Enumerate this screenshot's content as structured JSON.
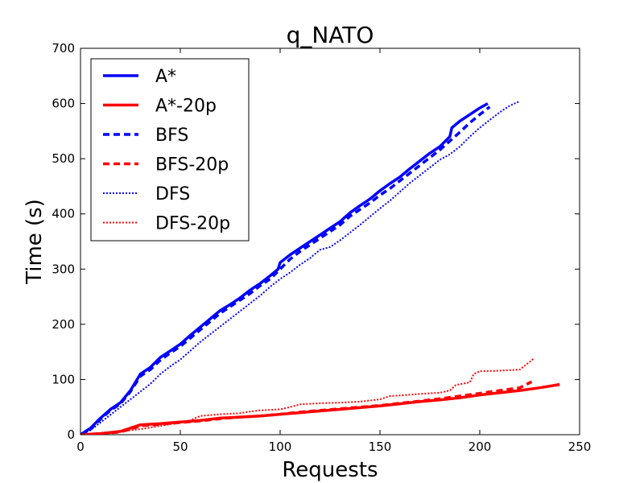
{
  "chart_data": {
    "type": "line",
    "title": "q_NATO",
    "xlabel": "Requests",
    "ylabel": "Time (s)",
    "xlim": [
      0,
      250
    ],
    "ylim": [
      0,
      700
    ],
    "xticks": [
      "0",
      "50",
      "100",
      "150",
      "200",
      "250"
    ],
    "yticks": [
      "0",
      "100",
      "200",
      "300",
      "400",
      "500",
      "600",
      "700"
    ],
    "grid": false,
    "legend_position": "top-left",
    "series": [
      {
        "name": "A*",
        "color": "#0000ff",
        "style": "solid",
        "points": [
          [
            0,
            0
          ],
          [
            5,
            12
          ],
          [
            10,
            30
          ],
          [
            15,
            46
          ],
          [
            20,
            58
          ],
          [
            25,
            80
          ],
          [
            30,
            110
          ],
          [
            35,
            122
          ],
          [
            40,
            140
          ],
          [
            45,
            152
          ],
          [
            50,
            164
          ],
          [
            55,
            180
          ],
          [
            60,
            195
          ],
          [
            65,
            210
          ],
          [
            70,
            225
          ],
          [
            75,
            236
          ],
          [
            80,
            248
          ],
          [
            85,
            262
          ],
          [
            90,
            274
          ],
          [
            95,
            288
          ],
          [
            99,
            300
          ],
          [
            100,
            312
          ],
          [
            105,
            326
          ],
          [
            110,
            338
          ],
          [
            115,
            350
          ],
          [
            120,
            362
          ],
          [
            125,
            374
          ],
          [
            130,
            386
          ],
          [
            135,
            402
          ],
          [
            140,
            415
          ],
          [
            145,
            427
          ],
          [
            150,
            442
          ],
          [
            155,
            455
          ],
          [
            160,
            467
          ],
          [
            165,
            482
          ],
          [
            170,
            496
          ],
          [
            175,
            510
          ],
          [
            180,
            522
          ],
          [
            185,
            540
          ],
          [
            186,
            556
          ],
          [
            190,
            568
          ],
          [
            195,
            580
          ],
          [
            200,
            592
          ],
          [
            204,
            600
          ]
        ]
      },
      {
        "name": "A*-20p",
        "color": "#ff0000",
        "style": "solid",
        "points": [
          [
            0,
            0
          ],
          [
            10,
            2
          ],
          [
            20,
            6
          ],
          [
            25,
            12
          ],
          [
            30,
            18
          ],
          [
            40,
            20
          ],
          [
            50,
            23
          ],
          [
            60,
            26
          ],
          [
            70,
            30
          ],
          [
            80,
            32
          ],
          [
            90,
            34
          ],
          [
            100,
            37
          ],
          [
            110,
            40
          ],
          [
            120,
            43
          ],
          [
            130,
            46
          ],
          [
            140,
            49
          ],
          [
            150,
            52
          ],
          [
            160,
            56
          ],
          [
            170,
            60
          ],
          [
            180,
            63
          ],
          [
            190,
            67
          ],
          [
            200,
            72
          ],
          [
            210,
            76
          ],
          [
            220,
            80
          ],
          [
            230,
            85
          ],
          [
            240,
            91
          ]
        ]
      },
      {
        "name": "BFS",
        "color": "#0000ff",
        "style": "dashed",
        "points": [
          [
            0,
            0
          ],
          [
            5,
            10
          ],
          [
            10,
            28
          ],
          [
            15,
            44
          ],
          [
            20,
            56
          ],
          [
            25,
            78
          ],
          [
            30,
            106
          ],
          [
            35,
            118
          ],
          [
            40,
            135
          ],
          [
            45,
            148
          ],
          [
            50,
            160
          ],
          [
            55,
            175
          ],
          [
            60,
            190
          ],
          [
            65,
            205
          ],
          [
            70,
            220
          ],
          [
            75,
            232
          ],
          [
            80,
            244
          ],
          [
            85,
            256
          ],
          [
            90,
            270
          ],
          [
            95,
            282
          ],
          [
            100,
            300
          ],
          [
            105,
            318
          ],
          [
            110,
            332
          ],
          [
            115,
            344
          ],
          [
            120,
            356
          ],
          [
            125,
            368
          ],
          [
            130,
            380
          ],
          [
            135,
            396
          ],
          [
            140,
            408
          ],
          [
            145,
            420
          ],
          [
            150,
            434
          ],
          [
            155,
            446
          ],
          [
            160,
            460
          ],
          [
            165,
            474
          ],
          [
            170,
            488
          ],
          [
            175,
            502
          ],
          [
            180,
            516
          ],
          [
            185,
            532
          ],
          [
            190,
            548
          ],
          [
            195,
            565
          ],
          [
            200,
            580
          ],
          [
            205,
            594
          ]
        ]
      },
      {
        "name": "BFS-20p",
        "color": "#ff0000",
        "style": "dashed",
        "points": [
          [
            0,
            0
          ],
          [
            10,
            2
          ],
          [
            20,
            5
          ],
          [
            25,
            10
          ],
          [
            30,
            16
          ],
          [
            40,
            19
          ],
          [
            50,
            22
          ],
          [
            60,
            25
          ],
          [
            70,
            29
          ],
          [
            80,
            32
          ],
          [
            90,
            34
          ],
          [
            100,
            37
          ],
          [
            110,
            41
          ],
          [
            120,
            44
          ],
          [
            130,
            47
          ],
          [
            140,
            50
          ],
          [
            150,
            53
          ],
          [
            160,
            57
          ],
          [
            170,
            61
          ],
          [
            180,
            65
          ],
          [
            190,
            70
          ],
          [
            200,
            75
          ],
          [
            210,
            80
          ],
          [
            220,
            85
          ],
          [
            226,
            96
          ]
        ]
      },
      {
        "name": "DFS",
        "color": "#0000ff",
        "style": "dotted",
        "points": [
          [
            0,
            0
          ],
          [
            5,
            8
          ],
          [
            10,
            22
          ],
          [
            15,
            36
          ],
          [
            20,
            50
          ],
          [
            25,
            64
          ],
          [
            30,
            78
          ],
          [
            35,
            92
          ],
          [
            40,
            110
          ],
          [
            45,
            124
          ],
          [
            50,
            136
          ],
          [
            55,
            152
          ],
          [
            60,
            168
          ],
          [
            65,
            182
          ],
          [
            70,
            196
          ],
          [
            75,
            210
          ],
          [
            80,
            224
          ],
          [
            85,
            238
          ],
          [
            90,
            252
          ],
          [
            95,
            268
          ],
          [
            100,
            282
          ],
          [
            105,
            294
          ],
          [
            110,
            308
          ],
          [
            115,
            320
          ],
          [
            120,
            335
          ],
          [
            125,
            340
          ],
          [
            130,
            352
          ],
          [
            135,
            366
          ],
          [
            140,
            380
          ],
          [
            145,
            395
          ],
          [
            150,
            410
          ],
          [
            155,
            424
          ],
          [
            160,
            440
          ],
          [
            165,
            456
          ],
          [
            170,
            470
          ],
          [
            175,
            484
          ],
          [
            180,
            498
          ],
          [
            185,
            508
          ],
          [
            190,
            522
          ],
          [
            195,
            540
          ],
          [
            200,
            556
          ],
          [
            205,
            570
          ],
          [
            210,
            584
          ],
          [
            215,
            596
          ],
          [
            220,
            604
          ]
        ]
      },
      {
        "name": "DFS-20p",
        "color": "#ff0000",
        "style": "dotted",
        "points": [
          [
            0,
            0
          ],
          [
            10,
            3
          ],
          [
            20,
            6
          ],
          [
            25,
            8
          ],
          [
            30,
            10
          ],
          [
            40,
            16
          ],
          [
            50,
            22
          ],
          [
            55,
            26
          ],
          [
            60,
            34
          ],
          [
            70,
            37
          ],
          [
            80,
            39
          ],
          [
            85,
            42
          ],
          [
            90,
            44
          ],
          [
            100,
            46
          ],
          [
            105,
            50
          ],
          [
            110,
            55
          ],
          [
            120,
            57
          ],
          [
            130,
            58
          ],
          [
            140,
            60
          ],
          [
            150,
            64
          ],
          [
            155,
            70
          ],
          [
            160,
            71
          ],
          [
            170,
            74
          ],
          [
            180,
            76
          ],
          [
            185,
            80
          ],
          [
            188,
            90
          ],
          [
            195,
            95
          ],
          [
            197,
            110
          ],
          [
            200,
            115
          ],
          [
            210,
            116
          ],
          [
            220,
            118
          ],
          [
            225,
            132
          ],
          [
            227,
            138
          ]
        ]
      }
    ]
  }
}
